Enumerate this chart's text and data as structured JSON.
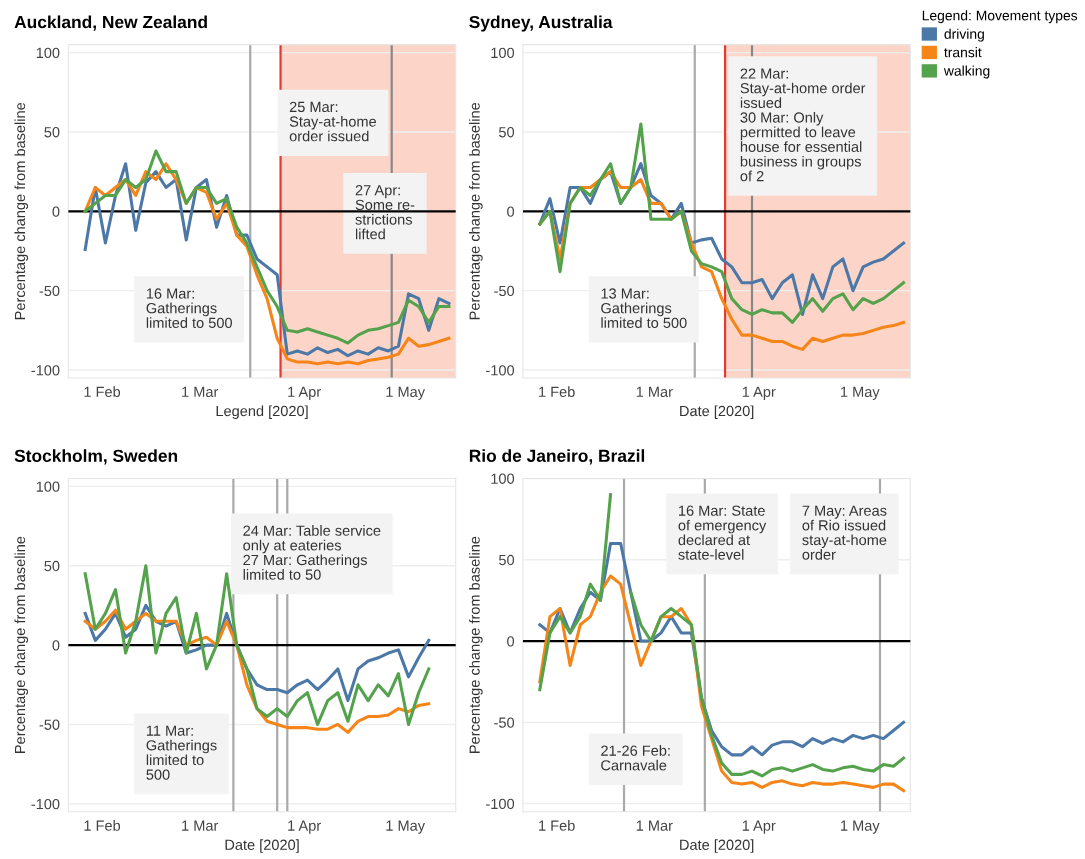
{
  "chart_data": [
    {
      "type": "line",
      "title": "Auckland, New Zealand",
      "xlabel": "Legend [2020]",
      "ylabel": "Percentage change from baseline",
      "x": [
        "2020-01-27",
        "2020-01-30",
        "2020-02-02",
        "2020-02-05",
        "2020-02-08",
        "2020-02-11",
        "2020-02-14",
        "2020-02-17",
        "2020-02-20",
        "2020-02-23",
        "2020-02-26",
        "2020-02-29",
        "2020-03-03",
        "2020-03-06",
        "2020-03-09",
        "2020-03-12",
        "2020-03-15",
        "2020-03-18",
        "2020-03-21",
        "2020-03-24",
        "2020-03-27",
        "2020-03-30",
        "2020-04-02",
        "2020-04-05",
        "2020-04-08",
        "2020-04-11",
        "2020-04-14",
        "2020-04-17",
        "2020-04-20",
        "2020-04-23",
        "2020-04-26",
        "2020-04-29",
        "2020-05-02",
        "2020-05-05",
        "2020-05-08",
        "2020-05-11",
        "2020-05-14"
      ],
      "series": [
        {
          "color": "#4c78a8",
          "values": [
            -24,
            15,
            -20,
            10,
            30,
            -12,
            18,
            25,
            15,
            20,
            -18,
            15,
            20,
            -10,
            10,
            -15,
            -15,
            -30,
            -35,
            -40,
            -90,
            -88,
            -90,
            -86,
            -89,
            -87,
            -91,
            -88,
            -90,
            -86,
            -88,
            -85,
            -52,
            -55,
            -75,
            -55,
            -58
          ]
        },
        {
          "color": "#f58518",
          "values": [
            0,
            15,
            10,
            15,
            20,
            10,
            25,
            20,
            30,
            20,
            5,
            15,
            12,
            -5,
            5,
            -15,
            -22,
            -40,
            -55,
            -80,
            -93,
            -95,
            -95,
            -96,
            -95,
            -96,
            -95,
            -96,
            -94,
            -93,
            -92,
            -90,
            -80,
            -85,
            -84,
            -82,
            -80
          ]
        },
        {
          "color": "#54a24b",
          "values": [
            0,
            5,
            10,
            10,
            20,
            15,
            20,
            38,
            25,
            25,
            5,
            15,
            15,
            5,
            8,
            -10,
            -20,
            -35,
            -50,
            -60,
            -75,
            -76,
            -74,
            -76,
            -78,
            -80,
            -83,
            -78,
            -75,
            -74,
            -72,
            -70,
            -56,
            -60,
            -70,
            -60,
            -60
          ]
        }
      ],
      "xlim": [
        "2020-01-22",
        "2020-05-16"
      ],
      "ylim": [
        -105,
        105
      ],
      "xticks": [
        {
          "value": "2020-02-01",
          "label": "1 Feb"
        },
        {
          "value": "2020-03-01",
          "label": "1 Mar"
        },
        {
          "value": "2020-04-01",
          "label": "1 Apr"
        },
        {
          "value": "2020-05-01",
          "label": "1 May"
        }
      ],
      "yticks": [
        -100,
        -50,
        0,
        50,
        100
      ],
      "grid": "y",
      "legend": false,
      "ref_lines": [
        {
          "axis": "y",
          "value": 0,
          "color": "#000000"
        },
        {
          "axis": "x",
          "value": "2020-03-16",
          "color": "#aaaaaa"
        },
        {
          "axis": "x",
          "value": "2020-03-25",
          "color": "#e8392f"
        },
        {
          "axis": "x",
          "value": "2020-04-27",
          "color": "#888888"
        }
      ],
      "bands": [
        {
          "axis": "x",
          "from": "2020-03-25",
          "to": "2020-05-16",
          "color": "#fcd5c8"
        }
      ],
      "annotations": [
        "16 Mar:\nGatherings\nlimited to 500",
        "25 Mar:\nStay-at-home\norder issued",
        "27 Apr:\nSome re-\nstrictions\nlifted"
      ]
    },
    {
      "type": "line",
      "title": "Sydney, Australia",
      "xlabel": "Date [2020]",
      "ylabel": "Percentage change from baseline",
      "x": [
        "2020-01-27",
        "2020-01-30",
        "2020-02-02",
        "2020-02-05",
        "2020-02-08",
        "2020-02-11",
        "2020-02-14",
        "2020-02-17",
        "2020-02-20",
        "2020-02-23",
        "2020-02-26",
        "2020-02-29",
        "2020-03-03",
        "2020-03-06",
        "2020-03-09",
        "2020-03-12",
        "2020-03-15",
        "2020-03-18",
        "2020-03-21",
        "2020-03-24",
        "2020-03-27",
        "2020-03-30",
        "2020-04-02",
        "2020-04-05",
        "2020-04-08",
        "2020-04-11",
        "2020-04-14",
        "2020-04-17",
        "2020-04-20",
        "2020-04-23",
        "2020-04-26",
        "2020-04-29",
        "2020-05-02",
        "2020-05-05",
        "2020-05-08",
        "2020-05-11",
        "2020-05-14"
      ],
      "series": [
        {
          "name": "driving",
          "color": "#4c78a8",
          "values": [
            -8,
            8,
            -20,
            15,
            15,
            5,
            20,
            25,
            5,
            15,
            30,
            10,
            5,
            -5,
            5,
            -20,
            -18,
            -17,
            -30,
            -35,
            -45,
            -45,
            -43,
            -55,
            -45,
            -40,
            -65,
            -40,
            -55,
            -35,
            -30,
            -50,
            -35,
            -32,
            -30,
            -25,
            -20
          ]
        },
        {
          "name": "transit",
          "color": "#f58518",
          "values": [
            -8,
            0,
            -30,
            5,
            15,
            15,
            20,
            25,
            15,
            15,
            20,
            5,
            5,
            -5,
            0,
            -20,
            -35,
            -38,
            -55,
            -68,
            -78,
            -78,
            -80,
            -82,
            -82,
            -85,
            -87,
            -80,
            -82,
            -80,
            -78,
            -78,
            -77,
            -75,
            -73,
            -72,
            -70
          ]
        },
        {
          "name": "walking",
          "color": "#54a24b",
          "values": [
            -8,
            0,
            -38,
            5,
            15,
            10,
            20,
            30,
            5,
            15,
            55,
            -5,
            -5,
            -5,
            0,
            -25,
            -33,
            -35,
            -38,
            -55,
            -62,
            -65,
            -62,
            -64,
            -64,
            -70,
            -62,
            -55,
            -63,
            -55,
            -52,
            -62,
            -55,
            -58,
            -55,
            -50,
            -45
          ]
        }
      ],
      "xlim": [
        "2020-01-22",
        "2020-05-16"
      ],
      "ylim": [
        -105,
        105
      ],
      "xticks": [
        {
          "value": "2020-02-01",
          "label": "1 Feb"
        },
        {
          "value": "2020-03-01",
          "label": "1 Mar"
        },
        {
          "value": "2020-04-01",
          "label": "1 Apr"
        },
        {
          "value": "2020-05-01",
          "label": "1 May"
        }
      ],
      "yticks": [
        -100,
        -50,
        0,
        50,
        100
      ],
      "grid": "y",
      "legend": "right",
      "legend_title": "Legend: Movement types",
      "ref_lines": [
        {
          "axis": "y",
          "value": 0,
          "color": "#000000"
        },
        {
          "axis": "x",
          "value": "2020-03-13",
          "color": "#aaaaaa"
        },
        {
          "axis": "x",
          "value": "2020-03-22",
          "color": "#e8392f"
        },
        {
          "axis": "x",
          "value": "2020-03-30",
          "color": "#888888"
        }
      ],
      "bands": [
        {
          "axis": "x",
          "from": "2020-03-22",
          "to": "2020-05-16",
          "color": "#fcd5c8"
        }
      ],
      "annotations": [
        "13 Mar:\nGatherings\nlimited to 500",
        "22 Mar:\nStay-at-home order\nissued\n30 Mar: Only\npermitted to leave\nhouse for essential\nbusiness in groups\nof 2"
      ]
    },
    {
      "type": "line",
      "title": "Stockholm, Sweden",
      "xlabel": "Date [2020]",
      "ylabel": "Percentage change from baseline",
      "x": [
        "2020-01-27",
        "2020-01-30",
        "2020-02-02",
        "2020-02-05",
        "2020-02-08",
        "2020-02-11",
        "2020-02-14",
        "2020-02-17",
        "2020-02-20",
        "2020-02-23",
        "2020-02-26",
        "2020-02-29",
        "2020-03-03",
        "2020-03-06",
        "2020-03-09",
        "2020-03-12",
        "2020-03-15",
        "2020-03-18",
        "2020-03-21",
        "2020-03-24",
        "2020-03-27",
        "2020-03-30",
        "2020-04-02",
        "2020-04-05",
        "2020-04-08",
        "2020-04-11",
        "2020-04-14",
        "2020-04-17",
        "2020-04-20",
        "2020-04-23",
        "2020-04-26",
        "2020-04-29",
        "2020-05-02",
        "2020-05-05",
        "2020-05-08"
      ],
      "series": [
        {
          "color": "#4c78a8",
          "values": [
            20,
            3,
            10,
            20,
            5,
            10,
            25,
            15,
            12,
            15,
            -5,
            -3,
            0,
            0,
            20,
            0,
            -15,
            -25,
            -28,
            -28,
            -30,
            -25,
            -22,
            -28,
            -22,
            -15,
            -35,
            -15,
            -10,
            -8,
            -5,
            -3,
            -20,
            -8,
            3
          ]
        },
        {
          "color": "#f58518",
          "values": [
            15,
            10,
            15,
            22,
            10,
            15,
            20,
            15,
            15,
            15,
            0,
            3,
            5,
            0,
            15,
            0,
            -25,
            -40,
            -48,
            -50,
            -52,
            -52,
            -52,
            -53,
            -53,
            -50,
            -55,
            -48,
            -45,
            -45,
            -44,
            -40,
            -42,
            -38,
            -37
          ]
        },
        {
          "color": "#54a24b",
          "values": [
            45,
            10,
            20,
            35,
            -5,
            15,
            50,
            -5,
            20,
            30,
            -5,
            20,
            -15,
            0,
            45,
            0,
            -15,
            -40,
            -45,
            -40,
            -45,
            -35,
            -30,
            -50,
            -35,
            -30,
            -48,
            -25,
            -35,
            -25,
            -32,
            -18,
            -50,
            -30,
            -15
          ]
        }
      ],
      "xlim": [
        "2020-01-22",
        "2020-05-16"
      ],
      "ylim": [
        -105,
        105
      ],
      "xticks": [
        {
          "value": "2020-02-01",
          "label": "1 Feb"
        },
        {
          "value": "2020-03-01",
          "label": "1 Mar"
        },
        {
          "value": "2020-04-01",
          "label": "1 Apr"
        },
        {
          "value": "2020-05-01",
          "label": "1 May"
        }
      ],
      "yticks": [
        -100,
        -50,
        0,
        50,
        100
      ],
      "grid": "y",
      "legend": false,
      "ref_lines": [
        {
          "axis": "y",
          "value": 0,
          "color": "#000000"
        },
        {
          "axis": "x",
          "value": "2020-03-11",
          "color": "#aaaaaa"
        },
        {
          "axis": "x",
          "value": "2020-03-24",
          "color": "#aaaaaa"
        },
        {
          "axis": "x",
          "value": "2020-03-27",
          "color": "#aaaaaa"
        }
      ],
      "annotations": [
        "11 Mar:\nGatherings\nlimited to\n500",
        "24 Mar: Table service\nonly at eateries\n27 Mar: Gatherings\nlimited to 50"
      ]
    },
    {
      "type": "line",
      "title": "Rio de Janeiro, Brazil",
      "xlabel": "Date [2020]",
      "ylabel": "Percentage change from baseline",
      "x": [
        "2020-01-27",
        "2020-01-30",
        "2020-02-02",
        "2020-02-05",
        "2020-02-08",
        "2020-02-11",
        "2020-02-14",
        "2020-02-17",
        "2020-02-20",
        "2020-02-23",
        "2020-02-26",
        "2020-02-29",
        "2020-03-03",
        "2020-03-06",
        "2020-03-09",
        "2020-03-12",
        "2020-03-15",
        "2020-03-18",
        "2020-03-21",
        "2020-03-24",
        "2020-03-27",
        "2020-03-30",
        "2020-04-02",
        "2020-04-05",
        "2020-04-08",
        "2020-04-11",
        "2020-04-14",
        "2020-04-17",
        "2020-04-20",
        "2020-04-23",
        "2020-04-26",
        "2020-04-29",
        "2020-05-02",
        "2020-05-05",
        "2020-05-08",
        "2020-05-11",
        "2020-05-14"
      ],
      "series": [
        {
          "color": "#4c78a8",
          "values": [
            10,
            5,
            20,
            5,
            20,
            30,
            25,
            60,
            60,
            30,
            0,
            0,
            5,
            15,
            5,
            5,
            -35,
            -55,
            -65,
            -70,
            -70,
            -65,
            -70,
            -64,
            -62,
            -62,
            -65,
            -60,
            -63,
            -60,
            -62,
            -58,
            -60,
            -58,
            -60,
            -55,
            -50
          ]
        },
        {
          "color": "#f58518",
          "values": [
            -25,
            15,
            20,
            -15,
            10,
            15,
            30,
            40,
            35,
            10,
            -15,
            0,
            15,
            15,
            20,
            10,
            -40,
            -60,
            -80,
            -87,
            -88,
            -87,
            -90,
            -87,
            -86,
            -88,
            -89,
            -87,
            -88,
            -88,
            -87,
            -88,
            -89,
            -90,
            -88,
            -88,
            -92
          ]
        },
        {
          "color": "#54a24b",
          "values": [
            -30,
            5,
            15,
            5,
            15,
            35,
            25,
            90,
            null,
            30,
            10,
            0,
            15,
            20,
            15,
            10,
            -35,
            -58,
            -75,
            -82,
            -82,
            -80,
            -83,
            -79,
            -78,
            -80,
            -78,
            -76,
            -79,
            -80,
            -78,
            -77,
            -79,
            -80,
            -76,
            -77,
            -72
          ]
        }
      ],
      "xlim": [
        "2020-01-22",
        "2020-05-16"
      ],
      "ylim": [
        -105,
        100
      ],
      "xticks": [
        {
          "value": "2020-02-01",
          "label": "1 Feb"
        },
        {
          "value": "2020-03-01",
          "label": "1 Mar"
        },
        {
          "value": "2020-04-01",
          "label": "1 Apr"
        },
        {
          "value": "2020-05-01",
          "label": "1 May"
        }
      ],
      "yticks": [
        -100,
        -50,
        0,
        50,
        100
      ],
      "grid": "y",
      "legend": false,
      "ref_lines": [
        {
          "axis": "y",
          "value": 0,
          "color": "#000000"
        },
        {
          "axis": "x",
          "value": "2020-02-21",
          "color": "#aaaaaa"
        },
        {
          "axis": "x",
          "value": "2020-03-16",
          "color": "#aaaaaa"
        },
        {
          "axis": "x",
          "value": "2020-05-07",
          "color": "#aaaaaa"
        }
      ],
      "annotations": [
        "21-26 Feb:\nCarnavale",
        "16 Mar: State\nof emergency\ndeclared at\nstate-level",
        "7 May: Areas\nof Rio issued\nstay-at-home\norder"
      ]
    }
  ]
}
